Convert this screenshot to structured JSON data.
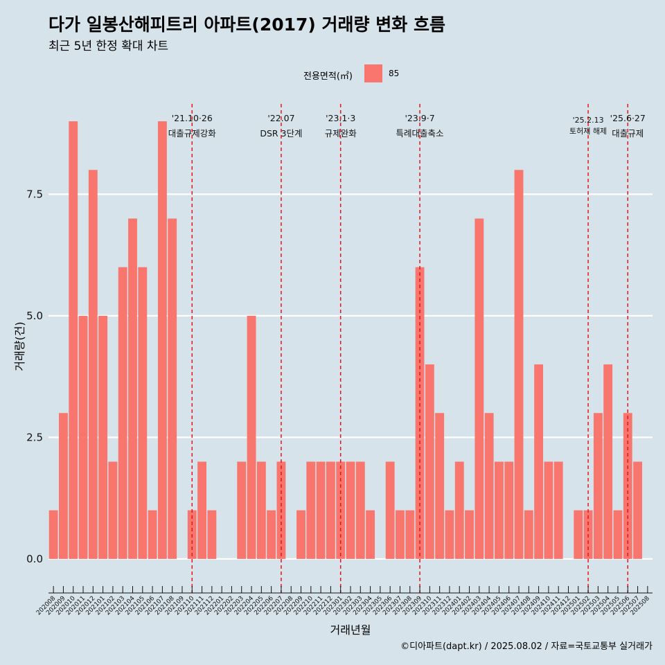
{
  "title": "다가 일봉산해피트리 아파트(2017) 거래량 변화 흐름",
  "subtitle": "최근 5년 한정 확대 차트",
  "legend": {
    "title": "전용면적(㎡)",
    "items": [
      {
        "label": "85",
        "color": "#f8766d"
      }
    ]
  },
  "caption": "©디아파트(dapt.kr) / 2025.08.02 / 자료=국토교통부 실거래가",
  "chart_data": {
    "type": "bar",
    "xlabel": "거래년월",
    "ylabel": "거래량(건)",
    "ylim": [
      -0.7,
      9.5
    ],
    "yticks": [
      0,
      2.5,
      5,
      7.5
    ],
    "ytick_labels": [
      "0.0",
      "2.5",
      "5.0",
      "7.5"
    ],
    "grid": "horizontal major",
    "legend_position": "top",
    "bar_color": "#f8766d",
    "categories": [
      "202008",
      "202009",
      "202010",
      "202011",
      "202012",
      "202101",
      "202102",
      "202103",
      "202104",
      "202105",
      "202106",
      "202107",
      "202108",
      "202109",
      "202110",
      "202111",
      "202112",
      "202201",
      "202202",
      "202203",
      "202204",
      "202205",
      "202206",
      "202207",
      "202208",
      "202209",
      "202210",
      "202211",
      "202212",
      "202301",
      "202302",
      "202303",
      "202304",
      "202305",
      "202306",
      "202307",
      "202308",
      "202309",
      "202310",
      "202311",
      "202312",
      "202401",
      "202402",
      "202403",
      "202404",
      "202405",
      "202406",
      "202407",
      "202408",
      "202409",
      "202410",
      "202411",
      "202412",
      "202501",
      "202502",
      "202503",
      "202504",
      "202505",
      "202506",
      "202507",
      "202508"
    ],
    "values": [
      1,
      3,
      9,
      5,
      8,
      5,
      2,
      6,
      7,
      6,
      1,
      9,
      7,
      0,
      1,
      2,
      1,
      0,
      0,
      2,
      5,
      2,
      1,
      2,
      0,
      1,
      2,
      2,
      2,
      2,
      2,
      2,
      1,
      0,
      2,
      1,
      1,
      6,
      4,
      3,
      1,
      2,
      1,
      7,
      3,
      2,
      2,
      8,
      1,
      4,
      2,
      2,
      0,
      1,
      1,
      3,
      4,
      1,
      3,
      2,
      0
    ],
    "events": [
      {
        "at": "202110",
        "date": "'21.10·26",
        "label": "대출규제강화"
      },
      {
        "at": "202207",
        "date": "'22.07",
        "label": "DSR 3단계"
      },
      {
        "at": "202301",
        "date": "'23.1·3",
        "label": "규제완화"
      },
      {
        "at": "202309",
        "date": "'23.9·7",
        "label": "특례대출축소"
      },
      {
        "at": "202502",
        "date": "'25.2.13",
        "label": "토허제 해제"
      },
      {
        "at": "202506",
        "date": "'25.6·27",
        "label": "대출규제"
      }
    ]
  }
}
